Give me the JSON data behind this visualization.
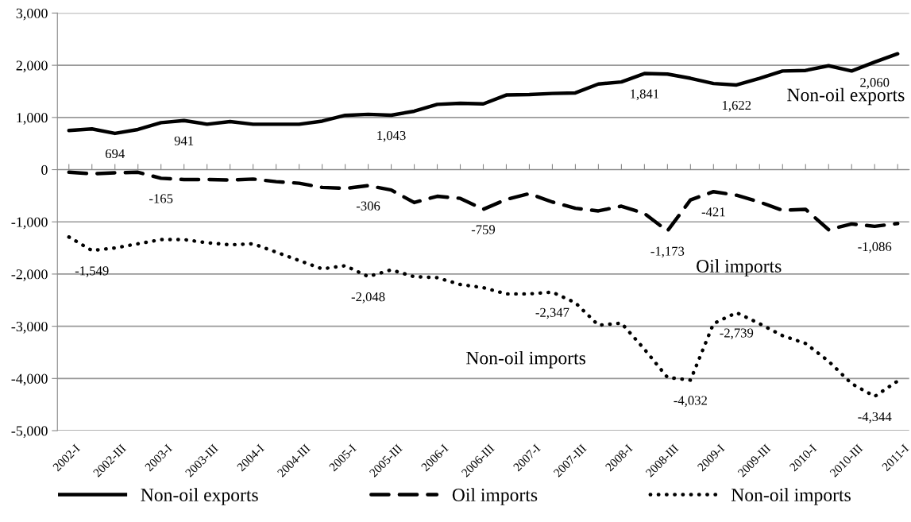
{
  "chart_data": {
    "type": "line",
    "categories": [
      "2002-I",
      null,
      "2002-III",
      null,
      "2003-I",
      null,
      "2003-III",
      null,
      "2004-I",
      null,
      "2004-III",
      null,
      "2005-I",
      null,
      "2005-III",
      null,
      "2006-I",
      null,
      "2006-III",
      null,
      "2007-I",
      null,
      "2007-III",
      null,
      "2008-I",
      null,
      "2008-III",
      null,
      "2009-I",
      null,
      "2009-III",
      null,
      "2010-I",
      null,
      "2010-III",
      null,
      "2011-I"
    ],
    "series": [
      {
        "name": "Non-oil exports",
        "color": "#000000",
        "line_style": "solid",
        "values": [
          750,
          780,
          694,
          770,
          900,
          941,
          870,
          920,
          870,
          870,
          870,
          930,
          1040,
          1060,
          1043,
          1120,
          1250,
          1270,
          1260,
          1430,
          1440,
          1460,
          1470,
          1640,
          1680,
          1841,
          1830,
          1750,
          1650,
          1622,
          1750,
          1890,
          1900,
          1990,
          1890,
          2060,
          2220
        ],
        "value_labels": [
          null,
          null,
          "694",
          null,
          null,
          "941",
          null,
          null,
          null,
          null,
          null,
          null,
          null,
          null,
          "1,043",
          null,
          null,
          null,
          null,
          null,
          null,
          null,
          null,
          null,
          null,
          "1,841",
          null,
          null,
          null,
          "1,622",
          null,
          null,
          null,
          null,
          null,
          "2,060",
          null
        ]
      },
      {
        "name": "Oil imports",
        "color": "#000000",
        "line_style": "dashed",
        "values": [
          -50,
          -80,
          -60,
          -50,
          -165,
          -190,
          -190,
          -200,
          -180,
          -230,
          -260,
          -340,
          -360,
          -306,
          -390,
          -630,
          -510,
          -550,
          -759,
          -570,
          -460,
          -620,
          -740,
          -790,
          -700,
          -840,
          -1173,
          -580,
          -421,
          -490,
          -620,
          -780,
          -760,
          -1150,
          -1040,
          -1086,
          -1030
        ],
        "value_labels": [
          null,
          null,
          null,
          null,
          "-165",
          null,
          null,
          null,
          null,
          null,
          null,
          null,
          null,
          "-306",
          null,
          null,
          null,
          null,
          "-759",
          null,
          null,
          null,
          null,
          null,
          null,
          null,
          "-1,173",
          null,
          "-421",
          null,
          null,
          null,
          null,
          null,
          null,
          "-1,086",
          null
        ]
      },
      {
        "name": "Non-oil imports",
        "color": "#000000",
        "line_style": "dotted",
        "values": [
          -1290,
          -1549,
          -1500,
          -1420,
          -1340,
          -1340,
          -1400,
          -1440,
          -1420,
          -1580,
          -1740,
          -1900,
          -1840,
          -2048,
          -1920,
          -2050,
          -2070,
          -2200,
          -2260,
          -2380,
          -2380,
          -2347,
          -2550,
          -2980,
          -2940,
          -3440,
          -3980,
          -4032,
          -2950,
          -2739,
          -2950,
          -3180,
          -3330,
          -3670,
          -4100,
          -4344,
          -4050
        ],
        "value_labels": [
          null,
          "-1,549",
          null,
          null,
          null,
          null,
          null,
          null,
          null,
          null,
          null,
          null,
          null,
          "-2,048",
          null,
          null,
          null,
          null,
          null,
          null,
          null,
          "-2,347",
          null,
          null,
          null,
          null,
          null,
          "-4,032",
          null,
          "-2,739",
          null,
          null,
          null,
          null,
          null,
          "-4,344",
          null
        ]
      }
    ],
    "ylim": [
      -5000,
      3000
    ],
    "yticks": [
      {
        "value": -5000,
        "label": "-5,000"
      },
      {
        "value": -4000,
        "label": "-4,000"
      },
      {
        "value": -3000,
        "label": "-3,000"
      },
      {
        "value": -2000,
        "label": "-2,000"
      },
      {
        "value": -1000,
        "label": "-1,000"
      },
      0,
      {
        "value": 1000,
        "label": "1,000"
      },
      {
        "value": 2000,
        "label": "2,000"
      },
      {
        "value": 3000,
        "label": "3,000"
      }
    ],
    "grid": "y",
    "legend": "bottom",
    "marker": "none"
  }
}
